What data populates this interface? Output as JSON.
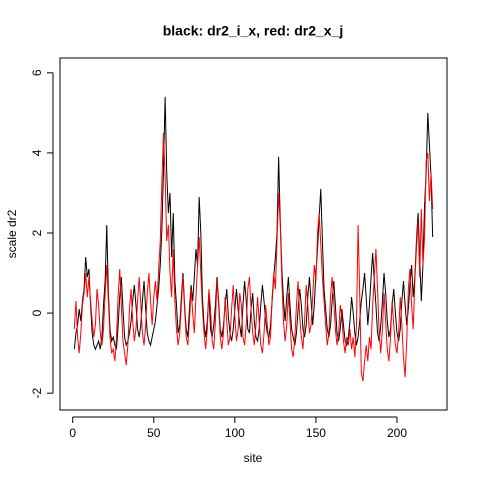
{
  "chart_data": {
    "type": "line",
    "title": "black: dr2_i_x, red: dr2_x_j",
    "x_label": "site",
    "y_label": "scale dr2",
    "x": [
      1,
      2,
      3,
      4,
      5,
      6,
      7,
      8,
      9,
      10,
      11,
      12,
      13,
      14,
      15,
      16,
      17,
      18,
      19,
      20,
      21,
      22,
      23,
      24,
      25,
      26,
      27,
      28,
      29,
      30,
      31,
      32,
      33,
      34,
      35,
      36,
      37,
      38,
      39,
      40,
      41,
      42,
      43,
      44,
      45,
      46,
      47,
      48,
      49,
      50,
      51,
      52,
      53,
      54,
      55,
      56,
      57,
      58,
      59,
      60,
      61,
      62,
      63,
      64,
      65,
      66,
      67,
      68,
      69,
      70,
      71,
      72,
      73,
      74,
      75,
      76,
      77,
      78,
      79,
      80,
      81,
      82,
      83,
      84,
      85,
      86,
      87,
      88,
      89,
      90,
      91,
      92,
      93,
      94,
      95,
      96,
      97,
      98,
      99,
      100,
      101,
      102,
      103,
      104,
      105,
      106,
      107,
      108,
      109,
      110,
      111,
      112,
      113,
      114,
      115,
      116,
      117,
      118,
      119,
      120,
      121,
      122,
      123,
      124,
      125,
      126,
      127,
      128,
      129,
      130,
      131,
      132,
      133,
      134,
      135,
      136,
      137,
      138,
      139,
      140,
      141,
      142,
      143,
      144,
      145,
      146,
      147,
      148,
      149,
      150,
      151,
      152,
      153,
      154,
      155,
      156,
      157,
      158,
      159,
      160,
      161,
      162,
      163,
      164,
      165,
      166,
      167,
      168,
      169,
      170,
      171,
      172,
      173,
      174,
      175,
      176,
      177,
      178,
      179,
      180,
      181,
      182,
      183,
      184,
      185,
      186,
      187,
      188,
      189,
      190,
      191,
      192,
      193,
      194,
      195,
      196,
      197,
      198,
      199,
      200,
      201,
      202,
      203,
      204,
      205,
      206,
      207,
      208,
      209,
      210,
      211,
      212,
      213,
      214,
      215,
      216,
      217,
      218,
      219,
      220,
      221,
      222
    ],
    "series": [
      {
        "color": "#000000",
        "values": [
          -0.9,
          -0.5,
          -0.3,
          0.1,
          -0.2,
          0.3,
          0.6,
          1.4,
          0.9,
          1.1,
          0.2,
          -0.5,
          -0.8,
          -0.9,
          -0.8,
          -0.7,
          -0.9,
          -0.6,
          0.2,
          0.8,
          2.2,
          0.5,
          -0.4,
          -0.7,
          -0.6,
          -0.8,
          -0.9,
          -0.3,
          0.4,
          0.9,
          0.1,
          -0.6,
          -0.8,
          -0.7,
          -0.5,
          -0.2,
          0.3,
          0.7,
          0.2,
          -0.4,
          -0.6,
          -0.3,
          0.3,
          0.8,
          0.1,
          -0.5,
          -0.7,
          -0.8,
          -0.6,
          -0.4,
          -0.2,
          0.2,
          0.6,
          1.2,
          2.1,
          3.6,
          5.4,
          3.5,
          2.5,
          3.0,
          1.4,
          2.5,
          0.8,
          0.2,
          -0.5,
          -0.3,
          0.4,
          1.0,
          0.2,
          -0.4,
          -0.6,
          0.1,
          0.7,
          0.3,
          0.9,
          1.6,
          1.2,
          2.9,
          2.0,
          0.4,
          -0.3,
          -0.6,
          -0.2,
          0.5,
          -0.4,
          -0.6,
          -0.3,
          0.2,
          0.9,
          0.3,
          -0.4,
          -0.6,
          -0.3,
          0.2,
          0.6,
          -0.1,
          -0.5,
          -0.7,
          -0.4,
          0.1,
          0.6,
          0.1,
          -0.3,
          -0.6,
          0.2,
          0.8,
          0.3,
          -0.4,
          -0.5,
          0.1,
          0.5,
          -0.2,
          -0.6,
          -0.7,
          -0.4,
          0.2,
          0.7,
          0.3,
          -0.2,
          -0.5,
          -0.6,
          -0.3,
          0.3,
          0.9,
          1.4,
          2.0,
          3.9,
          2.3,
          1.1,
          0.3,
          -0.2,
          0.4,
          0.9,
          0.2,
          -0.4,
          -0.6,
          -0.8,
          -0.5,
          0.1,
          0.6,
          0.2,
          -0.4,
          -0.6,
          -0.3,
          0.4,
          0.9,
          0.3,
          -0.3,
          0.2,
          1.0,
          1.6,
          2.4,
          3.1,
          1.8,
          0.6,
          0.1,
          -0.4,
          -0.6,
          -0.3,
          0.3,
          0.8,
          0.2,
          -0.5,
          -0.7,
          -0.4,
          0.1,
          -0.3,
          -0.7,
          -0.8,
          -0.6,
          -0.2,
          0.4,
          0.0,
          -0.5,
          -0.8,
          -0.6,
          -0.2,
          0.3,
          0.6,
          1.0,
          0.4,
          -0.3,
          0.2,
          0.9,
          1.5,
          0.8,
          0.2,
          -0.5,
          -0.7,
          -0.3,
          0.3,
          1.0,
          0.5,
          -0.2,
          -0.6,
          -0.4,
          0.2,
          0.6,
          0.0,
          -0.5,
          -0.7,
          -0.4,
          0.3,
          0.8,
          0.2,
          -0.3,
          0.1,
          0.7,
          1.2,
          0.4,
          0.9,
          1.8,
          2.5,
          1.4,
          0.3,
          1.2,
          2.7,
          3.5,
          5.0,
          4.2,
          3.4,
          1.9
        ]
      },
      {
        "color": "#ff0000",
        "values": [
          -0.4,
          0.3,
          -0.6,
          -1.0,
          -0.5,
          0.2,
          0.5,
          1.0,
          0.4,
          0.9,
          0.3,
          -0.2,
          -0.6,
          -0.3,
          0.6,
          0.2,
          -0.5,
          -0.8,
          -0.4,
          0.5,
          1.2,
          0.3,
          -0.6,
          -1.0,
          -0.9,
          -1.2,
          -0.6,
          0.4,
          1.1,
          0.2,
          -0.7,
          -1.0,
          -1.3,
          -0.8,
          0.1,
          0.6,
          -0.2,
          -0.7,
          -0.4,
          0.3,
          0.9,
          0.2,
          -0.5,
          -0.8,
          -0.3,
          0.5,
          1.0,
          0.3,
          -0.3,
          0.4,
          0.8,
          0.3,
          1.1,
          1.8,
          3.3,
          4.5,
          3.4,
          1.8,
          2.2,
          1.0,
          0.4,
          1.6,
          0.3,
          -0.4,
          -0.8,
          -0.5,
          0.2,
          0.9,
          0.1,
          -0.6,
          -0.8,
          -0.2,
          0.6,
          0.0,
          -0.5,
          0.4,
          1.2,
          1.9,
          1.0,
          0.1,
          -0.5,
          -0.9,
          -0.4,
          0.6,
          0.1,
          -0.7,
          -0.9,
          -0.2,
          0.8,
          0.2,
          -0.6,
          -0.9,
          -0.5,
          0.4,
          -0.2,
          -0.8,
          -0.6,
          0.1,
          0.7,
          -0.1,
          -0.7,
          -0.4,
          0.5,
          0.2,
          -0.6,
          -0.8,
          -0.3,
          0.6,
          0.9,
          0.1,
          -0.5,
          -0.8,
          -0.3,
          0.4,
          -0.2,
          -0.8,
          -1.0,
          -0.5,
          0.2,
          -0.3,
          -0.8,
          -0.6,
          0.4,
          1.0,
          0.6,
          1.8,
          3.0,
          2.2,
          0.8,
          -0.2,
          -0.7,
          -0.3,
          0.5,
          -0.2,
          -0.9,
          -1.1,
          -0.6,
          0.2,
          0.8,
          -0.1,
          -0.6,
          -0.9,
          -0.2,
          0.7,
          0.2,
          -0.5,
          -0.3,
          0.4,
          1.2,
          0.8,
          2.0,
          2.5,
          1.7,
          0.9,
          0.3,
          -0.3,
          -0.8,
          -0.5,
          0.4,
          0.9,
          0.3,
          -0.4,
          -0.8,
          -0.5,
          0.2,
          -0.1,
          -0.7,
          -1.0,
          -0.6,
          -0.8,
          -0.4,
          -0.9,
          -0.6,
          -1.1,
          -0.3,
          2.2,
          0.5,
          -1.5,
          -1.7,
          -1.2,
          -0.8,
          -1.2,
          -0.6,
          -0.9,
          0.2,
          0.9,
          1.6,
          0.6,
          -0.5,
          -1.0,
          -0.4,
          0.5,
          -0.2,
          -0.9,
          -1.2,
          -0.6,
          0.3,
          -0.3,
          -0.8,
          -1.0,
          -0.5,
          0.4,
          -0.3,
          -1.1,
          -1.6,
          -0.7,
          0.6,
          1.1,
          0.2,
          -0.4,
          0.8,
          1.6,
          2.3,
          0.9,
          2.6,
          1.2,
          1.9,
          3.8,
          4.0,
          2.8,
          3.5,
          2.6
        ]
      }
    ],
    "xlim": [
      -7.84,
      230.84
    ],
    "xticks": [
      0,
      50,
      100,
      150,
      200
    ],
    "ylim": [
      -2.42,
      6.37
    ],
    "yticks": [
      -2,
      0,
      2,
      4,
      6
    ]
  }
}
